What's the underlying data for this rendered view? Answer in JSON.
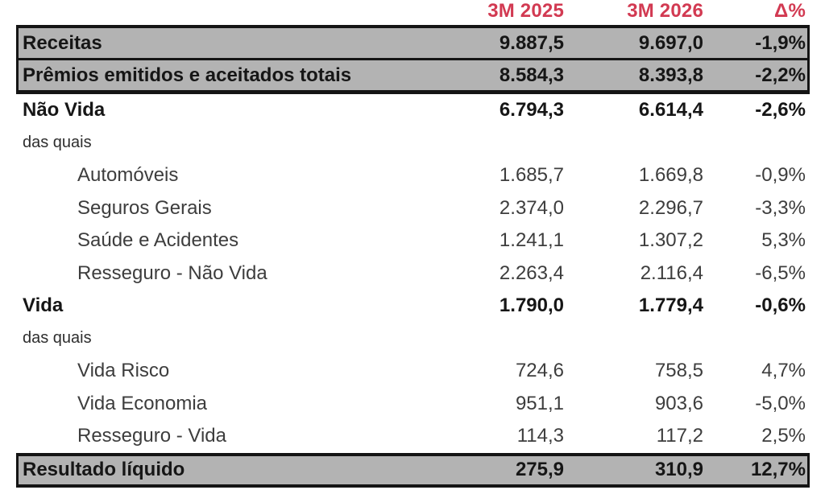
{
  "colors": {
    "header_accent": "#d23a52",
    "band_gray": "#b3b3b3",
    "border_black": "#141414",
    "bold_text": "#161616",
    "sub_text": "#3d3d3d"
  },
  "chart_data": {
    "type": "table",
    "title": "",
    "columns": [
      "3M 2025",
      "3M 2026",
      "Δ%"
    ],
    "number_format": "pt-BR, millions with one decimal",
    "rows": [
      {
        "label": "Receitas",
        "v2025": "9.887,5",
        "v2026": "9.697,0",
        "delta": "-1,9%",
        "style": "total"
      },
      {
        "label": "Prêmios emitidos e aceitados totais",
        "v2025": "8.584,3",
        "v2026": "8.393,8",
        "delta": "-2,2%",
        "style": "total"
      },
      {
        "label": "Não Vida",
        "v2025": "6.794,3",
        "v2026": "6.614,4",
        "delta": "-2,6%",
        "style": "bold"
      },
      {
        "label": "das quais",
        "v2025": "",
        "v2026": "",
        "delta": "",
        "style": "note"
      },
      {
        "label": "Automóveis",
        "v2025": "1.685,7",
        "v2026": "1.669,8",
        "delta": "-0,9%",
        "style": "sub"
      },
      {
        "label": "Seguros Gerais",
        "v2025": "2.374,0",
        "v2026": "2.296,7",
        "delta": "-3,3%",
        "style": "sub"
      },
      {
        "label": "Saúde e Acidentes",
        "v2025": "1.241,1",
        "v2026": "1.307,2",
        "delta": "5,3%",
        "style": "sub"
      },
      {
        "label": "Resseguro - Não Vida",
        "v2025": "2.263,4",
        "v2026": "2.116,4",
        "delta": "-6,5%",
        "style": "sub"
      },
      {
        "label": "Vida",
        "v2025": "1.790,0",
        "v2026": "1.779,4",
        "delta": "-0,6%",
        "style": "bold"
      },
      {
        "label": "das quais",
        "v2025": "",
        "v2026": "",
        "delta": "",
        "style": "note"
      },
      {
        "label": "Vida Risco",
        "v2025": "724,6",
        "v2026": "758,5",
        "delta": "4,7%",
        "style": "sub"
      },
      {
        "label": "Vida Economia",
        "v2025": "951,1",
        "v2026": "903,6",
        "delta": "-5,0%",
        "style": "sub"
      },
      {
        "label": "Resseguro - Vida",
        "v2025": "114,3",
        "v2026": "117,2",
        "delta": "2,5%",
        "style": "sub"
      },
      {
        "label": "Resultado líquido",
        "v2025": "275,9",
        "v2026": "310,9",
        "delta": "12,7%",
        "style": "total"
      }
    ]
  }
}
